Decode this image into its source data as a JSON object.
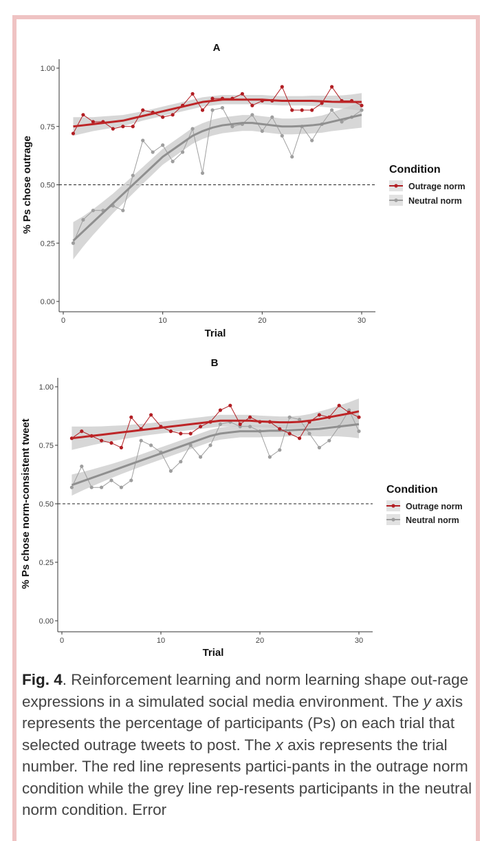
{
  "colors": {
    "outrage": "#b21e23",
    "neutral": "#9e9e9e",
    "outrage_smooth": "#bd2527",
    "neutral_smooth": "#8f8f8f",
    "band": "#c9c9c9",
    "frame": "#efc3c3"
  },
  "chart_data": [
    {
      "type": "line",
      "title": "A",
      "xlabel": "Trial",
      "ylabel": "% Ps chose outrage",
      "xlim": [
        0,
        30
      ],
      "ylim": [
        0,
        1.0
      ],
      "x_ticks": [
        "0",
        "10",
        "20",
        "30"
      ],
      "y_ticks": [
        "0.00",
        "0.25",
        "0.50",
        "0.75",
        "1.00"
      ],
      "reference_line": 0.5,
      "legend": {
        "title": "Condition",
        "position": "right",
        "entries": [
          "Outrage norm",
          "Neutral norm"
        ]
      },
      "x": [
        1,
        2,
        3,
        4,
        5,
        6,
        7,
        8,
        9,
        10,
        11,
        12,
        13,
        14,
        15,
        16,
        17,
        18,
        19,
        20,
        21,
        22,
        23,
        24,
        25,
        26,
        27,
        28,
        29,
        30
      ],
      "series": [
        {
          "name": "Outrage norm",
          "values": [
            0.72,
            0.8,
            0.77,
            0.77,
            0.74,
            0.75,
            0.75,
            0.82,
            0.81,
            0.79,
            0.8,
            0.84,
            0.89,
            0.82,
            0.87,
            0.87,
            0.87,
            0.89,
            0.84,
            0.86,
            0.86,
            0.92,
            0.82,
            0.82,
            0.82,
            0.85,
            0.92,
            0.86,
            0.86,
            0.84
          ],
          "smooth": [
            0.75,
            0.755,
            0.76,
            0.765,
            0.77,
            0.775,
            0.785,
            0.795,
            0.805,
            0.815,
            0.825,
            0.835,
            0.845,
            0.855,
            0.86,
            0.865,
            0.865,
            0.865,
            0.865,
            0.865,
            0.862,
            0.86,
            0.86,
            0.86,
            0.86,
            0.858,
            0.856,
            0.855,
            0.855,
            0.855
          ],
          "band": [
            0.04,
            0.035,
            0.03,
            0.028,
            0.026,
            0.024,
            0.022,
            0.02,
            0.02,
            0.02,
            0.02,
            0.02,
            0.02,
            0.02,
            0.02,
            0.02,
            0.02,
            0.02,
            0.02,
            0.02,
            0.02,
            0.02,
            0.02,
            0.02,
            0.022,
            0.024,
            0.026,
            0.028,
            0.032,
            0.038
          ]
        },
        {
          "name": "Neutral norm",
          "values": [
            0.25,
            0.35,
            0.39,
            0.39,
            0.41,
            0.39,
            0.54,
            0.69,
            0.64,
            0.67,
            0.6,
            0.64,
            0.74,
            0.55,
            0.82,
            0.83,
            0.75,
            0.76,
            0.8,
            0.73,
            0.79,
            0.71,
            0.62,
            0.75,
            0.69,
            0.76,
            0.82,
            0.77,
            0.79,
            0.82
          ],
          "smooth": [
            0.26,
            0.3,
            0.34,
            0.38,
            0.42,
            0.46,
            0.5,
            0.54,
            0.58,
            0.62,
            0.65,
            0.68,
            0.71,
            0.73,
            0.745,
            0.755,
            0.76,
            0.765,
            0.765,
            0.76,
            0.755,
            0.75,
            0.75,
            0.752,
            0.755,
            0.76,
            0.77,
            0.78,
            0.79,
            0.8
          ],
          "band": [
            0.08,
            0.065,
            0.055,
            0.048,
            0.042,
            0.04,
            0.038,
            0.036,
            0.035,
            0.034,
            0.034,
            0.034,
            0.034,
            0.034,
            0.034,
            0.034,
            0.034,
            0.034,
            0.034,
            0.034,
            0.034,
            0.034,
            0.034,
            0.034,
            0.035,
            0.037,
            0.04,
            0.045,
            0.05,
            0.055
          ]
        }
      ]
    },
    {
      "type": "line",
      "title": "B",
      "xlabel": "Trial",
      "ylabel": "% Ps chose norm-consistent tweet",
      "xlim": [
        0,
        30
      ],
      "ylim": [
        0,
        1.0
      ],
      "x_ticks": [
        "0",
        "10",
        "20",
        "30"
      ],
      "y_ticks": [
        "0.00",
        "0.25",
        "0.50",
        "0.75",
        "1.00"
      ],
      "reference_line": 0.5,
      "legend": {
        "title": "Condition",
        "position": "right",
        "entries": [
          "Outrage norm",
          "Neutral norm"
        ]
      },
      "x": [
        1,
        2,
        3,
        4,
        5,
        6,
        7,
        8,
        9,
        10,
        11,
        12,
        13,
        14,
        15,
        16,
        17,
        18,
        19,
        20,
        21,
        22,
        23,
        24,
        25,
        26,
        27,
        28,
        29,
        30
      ],
      "series": [
        {
          "name": "Outrage norm",
          "values": [
            0.78,
            0.81,
            0.79,
            0.77,
            0.76,
            0.74,
            0.87,
            0.82,
            0.88,
            0.83,
            0.81,
            0.8,
            0.8,
            0.83,
            0.85,
            0.9,
            0.92,
            0.84,
            0.87,
            0.85,
            0.85,
            0.82,
            0.8,
            0.78,
            0.85,
            0.88,
            0.87,
            0.92,
            0.89,
            0.87
          ],
          "smooth": [
            0.78,
            0.785,
            0.79,
            0.795,
            0.8,
            0.805,
            0.81,
            0.815,
            0.82,
            0.825,
            0.83,
            0.835,
            0.84,
            0.845,
            0.85,
            0.855,
            0.855,
            0.855,
            0.855,
            0.852,
            0.85,
            0.848,
            0.848,
            0.85,
            0.855,
            0.862,
            0.87,
            0.878,
            0.886,
            0.895
          ],
          "band": [
            0.05,
            0.045,
            0.04,
            0.036,
            0.033,
            0.03,
            0.028,
            0.026,
            0.025,
            0.025,
            0.025,
            0.025,
            0.025,
            0.025,
            0.025,
            0.025,
            0.025,
            0.025,
            0.025,
            0.025,
            0.025,
            0.025,
            0.025,
            0.026,
            0.028,
            0.032,
            0.036,
            0.042,
            0.048,
            0.055
          ]
        },
        {
          "name": "Neutral norm",
          "values": [
            0.57,
            0.66,
            0.57,
            0.57,
            0.6,
            0.57,
            0.6,
            0.77,
            0.75,
            0.72,
            0.64,
            0.68,
            0.75,
            0.7,
            0.75,
            0.84,
            0.85,
            0.83,
            0.83,
            0.81,
            0.7,
            0.73,
            0.87,
            0.86,
            0.8,
            0.74,
            0.77,
            0.83,
            0.9,
            0.81
          ],
          "smooth": [
            0.58,
            0.595,
            0.61,
            0.625,
            0.64,
            0.655,
            0.67,
            0.685,
            0.7,
            0.715,
            0.73,
            0.745,
            0.76,
            0.775,
            0.79,
            0.8,
            0.805,
            0.81,
            0.81,
            0.81,
            0.812,
            0.812,
            0.814,
            0.816,
            0.818,
            0.82,
            0.825,
            0.83,
            0.835,
            0.84
          ],
          "band": [
            0.045,
            0.04,
            0.036,
            0.033,
            0.03,
            0.028,
            0.027,
            0.026,
            0.026,
            0.026,
            0.026,
            0.026,
            0.026,
            0.026,
            0.026,
            0.026,
            0.026,
            0.026,
            0.026,
            0.026,
            0.026,
            0.026,
            0.026,
            0.026,
            0.028,
            0.032,
            0.036,
            0.042,
            0.05,
            0.06
          ]
        }
      ]
    }
  ],
  "caption": {
    "label": "Fig. 4",
    "part1": ". Reinforcement learning and norm learning shape out-rage expressions in a simulated social media environment. The ",
    "y_word": "y",
    "part2": " axis represents the percentage of participants (Ps) on each trial that selected outrage tweets to post. The ",
    "x_word": "x",
    "part3": " axis represents the trial number. The red line represents partici-pants in the outrage norm condition while the grey line rep-resents participants in the neutral norm condition. Error"
  }
}
